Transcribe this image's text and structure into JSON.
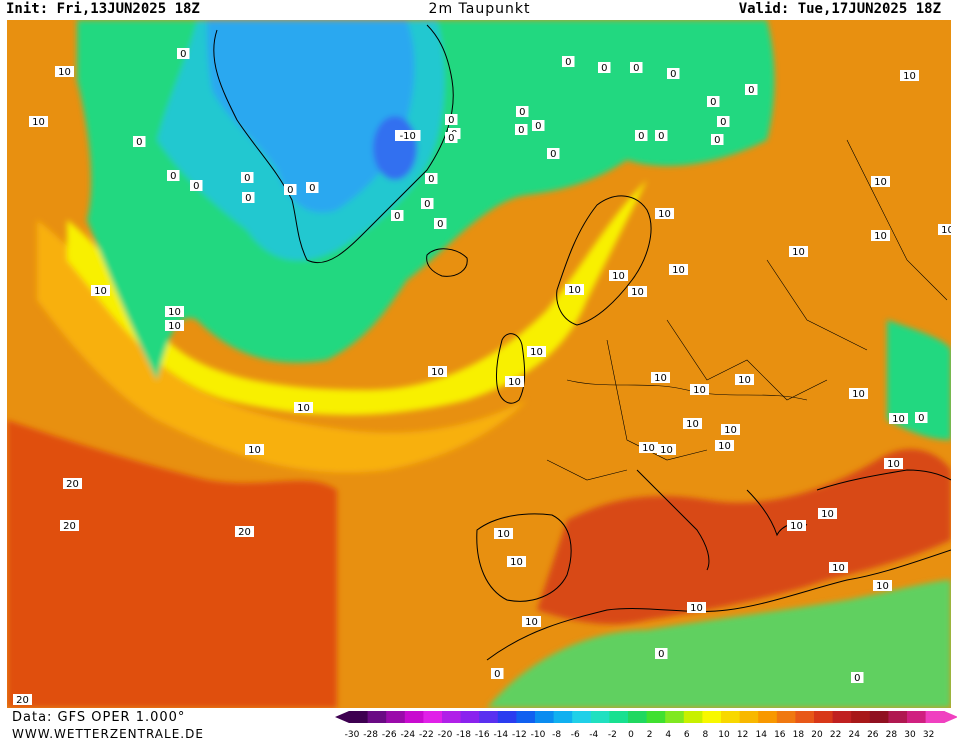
{
  "header": {
    "init": "Init: Fri,13JUN2025 18Z",
    "title": "2m Taupunkt",
    "valid": "Valid: Tue,17JUN2025 18Z"
  },
  "footer": {
    "data_source": "Data: GFS OPER 1.000°",
    "website": "WWW.WETTERZENTRALE.DE"
  },
  "legend": {
    "labels": [
      "-30",
      "-28",
      "-26",
      "-24",
      "-22",
      "-20",
      "-18",
      "-16",
      "-14",
      "-12",
      "-10",
      "-8",
      "-6",
      "-4",
      "-2",
      "0",
      "2",
      "4",
      "6",
      "8",
      "10",
      "12",
      "14",
      "16",
      "18",
      "20",
      "22",
      "24",
      "26",
      "28",
      "30",
      "32"
    ],
    "colors": [
      "#3d0050",
      "#6a0a84",
      "#9a0aaa",
      "#c80acf",
      "#e020e8",
      "#b020e8",
      "#8a22ee",
      "#5a30f0",
      "#2a3cf0",
      "#1060f0",
      "#0a8cf0",
      "#10b0f0",
      "#20d0e8",
      "#20e0c0",
      "#18e090",
      "#20d860",
      "#40e030",
      "#80e820",
      "#c8f000",
      "#f8f800",
      "#f8d800",
      "#f8b800",
      "#f89800",
      "#f07810",
      "#e85818",
      "#d83818",
      "#c02020",
      "#a81818",
      "#901020",
      "#b01850",
      "#d02080",
      "#f040c0"
    ],
    "arrow_left_color": "#3d0050",
    "arrow_right_color": "#f040c0"
  },
  "map": {
    "colors": {
      "background": "#e89010",
      "ocean_warm": "#e05010",
      "band_orange": "#f08c10",
      "band_amber": "#f8b010",
      "band_yellow": "#f8f000",
      "band_green": "#20d880",
      "band_cyan": "#20c8d0",
      "band_blue": "#2aa8f0",
      "core_blue": "#3070f0",
      "mediterranean": "#d84818",
      "sahara_green": "#60d060",
      "lines": "#000000"
    },
    "contour_labels": [
      "10",
      "10",
      "0",
      "0",
      "0",
      "0",
      "0",
      "0",
      "0",
      "0",
      "0",
      "0",
      "0",
      "-10",
      "0",
      "0",
      "0",
      "0",
      "0",
      "0",
      "0",
      "0",
      "0",
      "0",
      "0",
      "0",
      "0",
      "0",
      "0",
      "0",
      "0",
      "0",
      "10",
      "10",
      "10",
      "10",
      "10",
      "10",
      "10",
      "10",
      "10",
      "10",
      "10",
      "10",
      "10",
      "10",
      "10",
      "10",
      "10",
      "10",
      "10",
      "10",
      "10",
      "10",
      "10",
      "10",
      "10",
      "10",
      "10",
      "10",
      "10",
      "10",
      "10",
      "10",
      "10",
      "0",
      "0",
      "20",
      "20",
      "20",
      "10",
      "10",
      "10",
      "0",
      "0",
      "20",
      "10"
    ]
  }
}
